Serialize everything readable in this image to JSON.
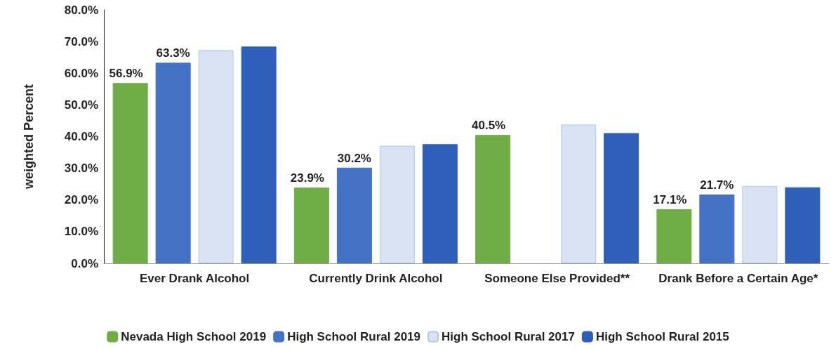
{
  "chart_data": {
    "type": "bar",
    "ylabel": "weighted Percent",
    "categories": [
      "Ever Drank Alcohol",
      "Currently Drink Alcohol",
      "Someone Else Provided**",
      "Drank Before a Certain Age*"
    ],
    "series": [
      {
        "name": "Nevada High School 2019",
        "color": "#70ad47",
        "values": [
          56.9,
          23.9,
          40.5,
          17.1
        ],
        "value_labels": [
          "56.9%",
          "23.9%",
          "40.5%",
          "17.1%"
        ]
      },
      {
        "name": "High School Rural 2019",
        "color": "#4472c4",
        "values": [
          63.3,
          30.2,
          null,
          21.7
        ],
        "value_labels": [
          "63.3%",
          "30.2%",
          null,
          "21.7%"
        ]
      },
      {
        "name": "High School Rural 2017",
        "color": "#dae3f3",
        "values": [
          67.3,
          37.1,
          43.8,
          24.4
        ]
      },
      {
        "name": "High School Rural 2015",
        "color": "#2f5fb8",
        "values": [
          68.4,
          37.6,
          41.1,
          24.0
        ]
      }
    ],
    "ylim": [
      0,
      80
    ],
    "yticks": [
      {
        "value": 0,
        "label": "0.0%"
      },
      {
        "value": 10,
        "label": "10.0%"
      },
      {
        "value": 20,
        "label": "20.0%"
      },
      {
        "value": 30,
        "label": "30.0%"
      },
      {
        "value": 40,
        "label": "40.0%"
      },
      {
        "value": 50,
        "label": "50.0%"
      },
      {
        "value": 60,
        "label": "60.0%"
      },
      {
        "value": 70,
        "label": "70.0%"
      },
      {
        "value": 80,
        "label": "80.0%"
      }
    ],
    "grid": false,
    "legend": "bottom"
  }
}
